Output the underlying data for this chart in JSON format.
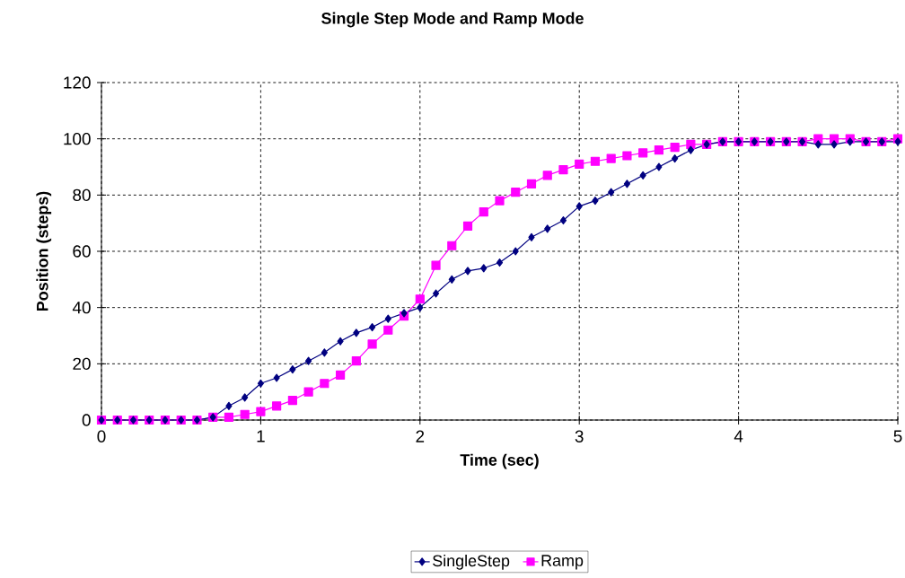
{
  "chart_data": {
    "type": "line",
    "title": "Single Step Mode and Ramp Mode",
    "xlabel": "Time (sec)",
    "ylabel": "Position (steps)",
    "x": [
      0,
      0.1,
      0.2,
      0.3,
      0.4,
      0.5,
      0.6,
      0.7,
      0.8,
      0.9,
      1.0,
      1.1,
      1.2,
      1.3,
      1.4,
      1.5,
      1.6,
      1.7,
      1.8,
      1.9,
      2.0,
      2.1,
      2.2,
      2.3,
      2.4,
      2.5,
      2.6,
      2.7,
      2.8,
      2.9,
      3.0,
      3.1,
      3.2,
      3.3,
      3.4,
      3.5,
      3.6,
      3.7,
      3.8,
      3.9,
      4.0,
      4.1,
      4.2,
      4.3,
      4.4,
      4.5,
      4.6,
      4.7,
      4.8,
      4.9,
      5.0
    ],
    "series": [
      {
        "name": "SingleStep",
        "color": "#000080",
        "marker": "diamond",
        "values": [
          0,
          0,
          0,
          0,
          0,
          0,
          0,
          1,
          5,
          8,
          13,
          15,
          18,
          21,
          24,
          28,
          31,
          33,
          36,
          38,
          40,
          45,
          50,
          53,
          54,
          56,
          60,
          65,
          68,
          71,
          76,
          78,
          81,
          84,
          87,
          90,
          93,
          96,
          98,
          99,
          99,
          99,
          99,
          99,
          99,
          98,
          98,
          99,
          99,
          99,
          99
        ]
      },
      {
        "name": "Ramp",
        "color": "#ff00ff",
        "marker": "square",
        "values": [
          0,
          0,
          0,
          0,
          0,
          0,
          0,
          1,
          1,
          2,
          3,
          5,
          7,
          10,
          13,
          16,
          21,
          27,
          32,
          37,
          43,
          55,
          62,
          69,
          74,
          78,
          81,
          84,
          87,
          89,
          91,
          92,
          93,
          94,
          95,
          96,
          97,
          98,
          98,
          99,
          99,
          99,
          99,
          99,
          99,
          100,
          100,
          100,
          99,
          99,
          100
        ]
      }
    ],
    "xlim": [
      0,
      5
    ],
    "xticks": [
      0,
      1,
      2,
      3,
      4,
      5
    ],
    "ylim": [
      0,
      120
    ],
    "yticks": [
      0,
      20,
      40,
      60,
      80,
      100,
      120
    ],
    "grid": true,
    "legend": "bottom",
    "line_style": "solid"
  }
}
